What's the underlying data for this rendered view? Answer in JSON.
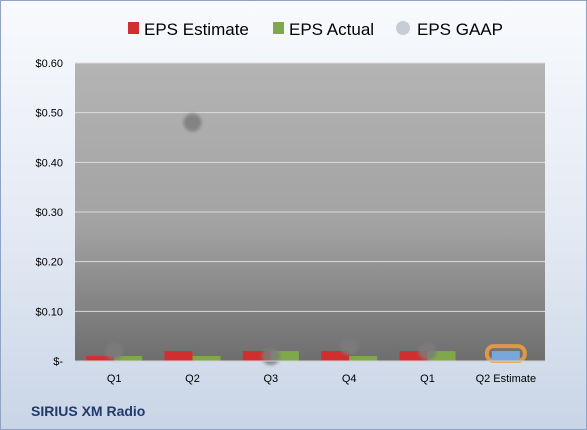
{
  "footer_label": "SIRIUS XM Radio",
  "chart_data": {
    "type": "bar",
    "categories": [
      "Q1",
      "Q2",
      "Q3",
      "Q4",
      "Q1",
      "Q2 Estimate"
    ],
    "series": [
      {
        "name": "EPS Estimate",
        "kind": "bar",
        "color": "#d12f2f",
        "values": [
          0.01,
          0.02,
          0.02,
          0.02,
          0.02,
          null
        ]
      },
      {
        "name": "EPS Actual",
        "kind": "bar",
        "color": "#7fa84a",
        "values": [
          0.01,
          0.01,
          0.02,
          0.01,
          0.02,
          null
        ]
      },
      {
        "name": "EPS GAAP",
        "kind": "scatter",
        "color": "#c6cdd8",
        "values": [
          0.02,
          0.48,
          0.01,
          0.03,
          0.02,
          null
        ]
      },
      {
        "name": "Q2 Estimate",
        "kind": "bar-highlight",
        "color": "#7aa7d8",
        "outline": "#f0a040",
        "values": [
          null,
          null,
          null,
          null,
          null,
          0.02
        ]
      }
    ],
    "y_ticks": [
      "$-",
      "$0.10",
      "$0.20",
      "$0.30",
      "$0.40",
      "$0.50",
      "$0.60"
    ],
    "ylim": [
      0,
      0.6
    ],
    "grid": true,
    "legend": "top"
  }
}
